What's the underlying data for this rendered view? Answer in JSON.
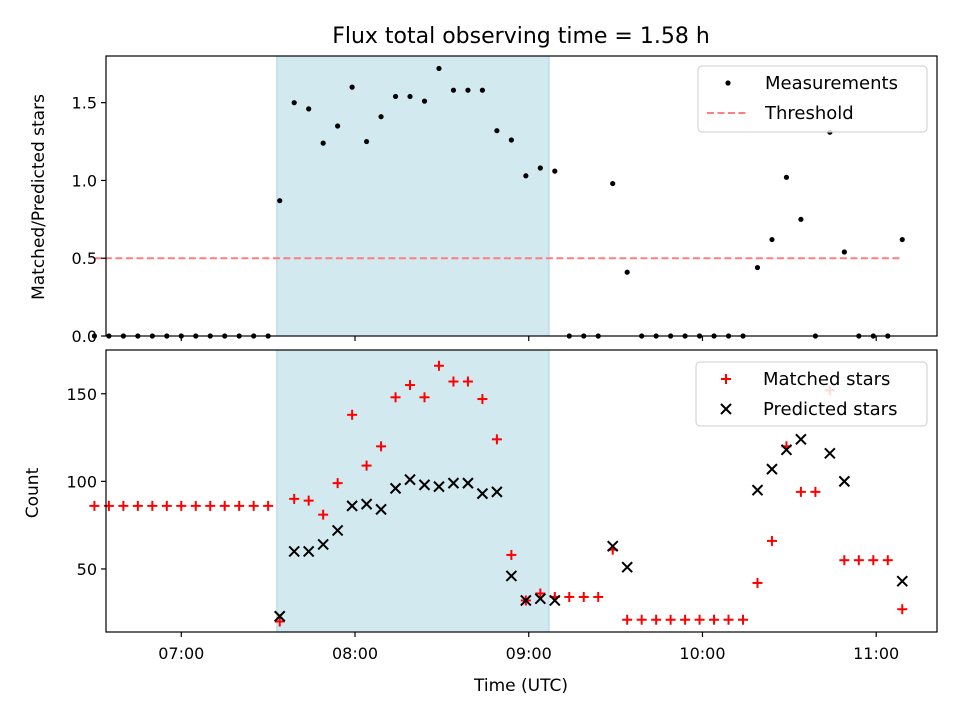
{
  "chart_data": [
    {
      "type": "scatter",
      "title": "Flux total observing time = 1.58 h",
      "xlabel": "",
      "ylabel": "Matched/Predicted stars",
      "x_ticks": [
        "07:00",
        "08:00",
        "09:00",
        "10:00",
        "11:00"
      ],
      "yticks": [
        "0.0",
        "0.5",
        "1.0",
        "1.5"
      ],
      "xlim": [
        "06:34",
        "11:21"
      ],
      "ylim": [
        0,
        1.8
      ],
      "highlight_interval": [
        "07:33",
        "09:07"
      ],
      "legend_position": "top-right",
      "series": [
        {
          "name": "Measurements",
          "type": "scatter",
          "marker": "dot",
          "color": "#000000",
          "points": [
            [
              "06:30",
              0
            ],
            [
              "06:35",
              0
            ],
            [
              "06:40",
              0
            ],
            [
              "06:45",
              0
            ],
            [
              "06:50",
              0
            ],
            [
              "06:55",
              0
            ],
            [
              "07:00",
              0
            ],
            [
              "07:05",
              0
            ],
            [
              "07:10",
              0
            ],
            [
              "07:15",
              0
            ],
            [
              "07:20",
              0
            ],
            [
              "07:25",
              0
            ],
            [
              "07:30",
              0
            ],
            [
              "07:34",
              0.87
            ],
            [
              "07:39",
              1.5
            ],
            [
              "07:44",
              1.46
            ],
            [
              "07:49",
              1.24
            ],
            [
              "07:54",
              1.35
            ],
            [
              "07:59",
              1.6
            ],
            [
              "08:04",
              1.25
            ],
            [
              "08:09",
              1.41
            ],
            [
              "08:14",
              1.54
            ],
            [
              "08:19",
              1.54
            ],
            [
              "08:24",
              1.51
            ],
            [
              "08:29",
              1.72
            ],
            [
              "08:34",
              1.58
            ],
            [
              "08:39",
              1.58
            ],
            [
              "08:44",
              1.58
            ],
            [
              "08:49",
              1.32
            ],
            [
              "08:54",
              1.26
            ],
            [
              "08:59",
              1.03
            ],
            [
              "09:04",
              1.08
            ],
            [
              "09:09",
              1.06
            ],
            [
              "09:14",
              0
            ],
            [
              "09:19",
              0
            ],
            [
              "09:24",
              0
            ],
            [
              "09:29",
              0.98
            ],
            [
              "09:34",
              0.41
            ],
            [
              "09:39",
              0
            ],
            [
              "09:44",
              0
            ],
            [
              "09:49",
              0
            ],
            [
              "09:54",
              0
            ],
            [
              "09:59",
              0
            ],
            [
              "10:04",
              0
            ],
            [
              "10:09",
              0
            ],
            [
              "10:14",
              0
            ],
            [
              "10:19",
              0.44
            ],
            [
              "10:24",
              0.62
            ],
            [
              "10:29",
              1.02
            ],
            [
              "10:34",
              0.75
            ],
            [
              "10:39",
              0
            ],
            [
              "10:44",
              1.31
            ],
            [
              "10:49",
              0.54
            ],
            [
              "10:54",
              0
            ],
            [
              "10:59",
              0
            ],
            [
              "11:04",
              0
            ],
            [
              "11:09",
              0.62
            ]
          ]
        },
        {
          "name": "Threshold",
          "type": "line",
          "style": "dashed",
          "color": "#ff7f7f",
          "points": [
            [
              "06:30",
              0.5
            ],
            [
              "11:09",
              0.5
            ]
          ]
        }
      ]
    },
    {
      "type": "scatter",
      "title": "",
      "xlabel": "Time (UTC)",
      "ylabel": "Count",
      "x_ticks": [
        "07:00",
        "08:00",
        "09:00",
        "10:00",
        "11:00"
      ],
      "yticks": [
        "50",
        "100",
        "150"
      ],
      "xlim": [
        "06:34",
        "11:21"
      ],
      "ylim": [
        14,
        175
      ],
      "highlight_interval": [
        "07:33",
        "09:07"
      ],
      "legend_position": "top-right",
      "series": [
        {
          "name": "Matched stars",
          "type": "scatter",
          "marker": "plus",
          "color": "#ff0000",
          "points": [
            [
              "06:30",
              86
            ],
            [
              "06:35",
              86
            ],
            [
              "06:40",
              86
            ],
            [
              "06:45",
              86
            ],
            [
              "06:50",
              86
            ],
            [
              "06:55",
              86
            ],
            [
              "07:00",
              86
            ],
            [
              "07:05",
              86
            ],
            [
              "07:10",
              86
            ],
            [
              "07:15",
              86
            ],
            [
              "07:20",
              86
            ],
            [
              "07:25",
              86
            ],
            [
              "07:30",
              86
            ],
            [
              "07:34",
              20
            ],
            [
              "07:39",
              90
            ],
            [
              "07:44",
              89
            ],
            [
              "07:49",
              81
            ],
            [
              "07:54",
              99
            ],
            [
              "07:59",
              138
            ],
            [
              "08:04",
              109
            ],
            [
              "08:09",
              120
            ],
            [
              "08:14",
              148
            ],
            [
              "08:19",
              155
            ],
            [
              "08:24",
              148
            ],
            [
              "08:29",
              166
            ],
            [
              "08:34",
              157
            ],
            [
              "08:39",
              157
            ],
            [
              "08:44",
              147
            ],
            [
              "08:49",
              124
            ],
            [
              "08:54",
              58
            ],
            [
              "08:59",
              32
            ],
            [
              "09:04",
              36
            ],
            [
              "09:09",
              34
            ],
            [
              "09:14",
              34
            ],
            [
              "09:19",
              34
            ],
            [
              "09:24",
              34
            ],
            [
              "09:29",
              61
            ],
            [
              "09:34",
              21
            ],
            [
              "09:39",
              21
            ],
            [
              "09:44",
              21
            ],
            [
              "09:49",
              21
            ],
            [
              "09:54",
              21
            ],
            [
              "09:59",
              21
            ],
            [
              "10:04",
              21
            ],
            [
              "10:09",
              21
            ],
            [
              "10:14",
              21
            ],
            [
              "10:19",
              42
            ],
            [
              "10:24",
              66
            ],
            [
              "10:29",
              120
            ],
            [
              "10:34",
              94
            ],
            [
              "10:39",
              94
            ],
            [
              "10:44",
              152
            ],
            [
              "10:49",
              55
            ],
            [
              "10:54",
              55
            ],
            [
              "10:59",
              55
            ],
            [
              "11:04",
              55
            ],
            [
              "11:09",
              27
            ]
          ]
        },
        {
          "name": "Predicted stars",
          "type": "scatter",
          "marker": "x",
          "color": "#000000",
          "points": [
            [
              "07:34",
              23
            ],
            [
              "07:39",
              60
            ],
            [
              "07:44",
              60
            ],
            [
              "07:49",
              64
            ],
            [
              "07:54",
              72
            ],
            [
              "07:59",
              86
            ],
            [
              "08:04",
              87
            ],
            [
              "08:09",
              84
            ],
            [
              "08:14",
              96
            ],
            [
              "08:19",
              101
            ],
            [
              "08:24",
              98
            ],
            [
              "08:29",
              97
            ],
            [
              "08:34",
              99
            ],
            [
              "08:39",
              99
            ],
            [
              "08:44",
              93
            ],
            [
              "08:49",
              94
            ],
            [
              "08:54",
              46
            ],
            [
              "08:59",
              32
            ],
            [
              "09:04",
              33
            ],
            [
              "09:09",
              32
            ],
            [
              "09:29",
              63
            ],
            [
              "09:34",
              51
            ],
            [
              "10:19",
              95
            ],
            [
              "10:24",
              107
            ],
            [
              "10:29",
              118
            ],
            [
              "10:34",
              124
            ],
            [
              "10:44",
              116
            ],
            [
              "10:49",
              100
            ],
            [
              "11:09",
              43
            ]
          ]
        }
      ]
    }
  ]
}
